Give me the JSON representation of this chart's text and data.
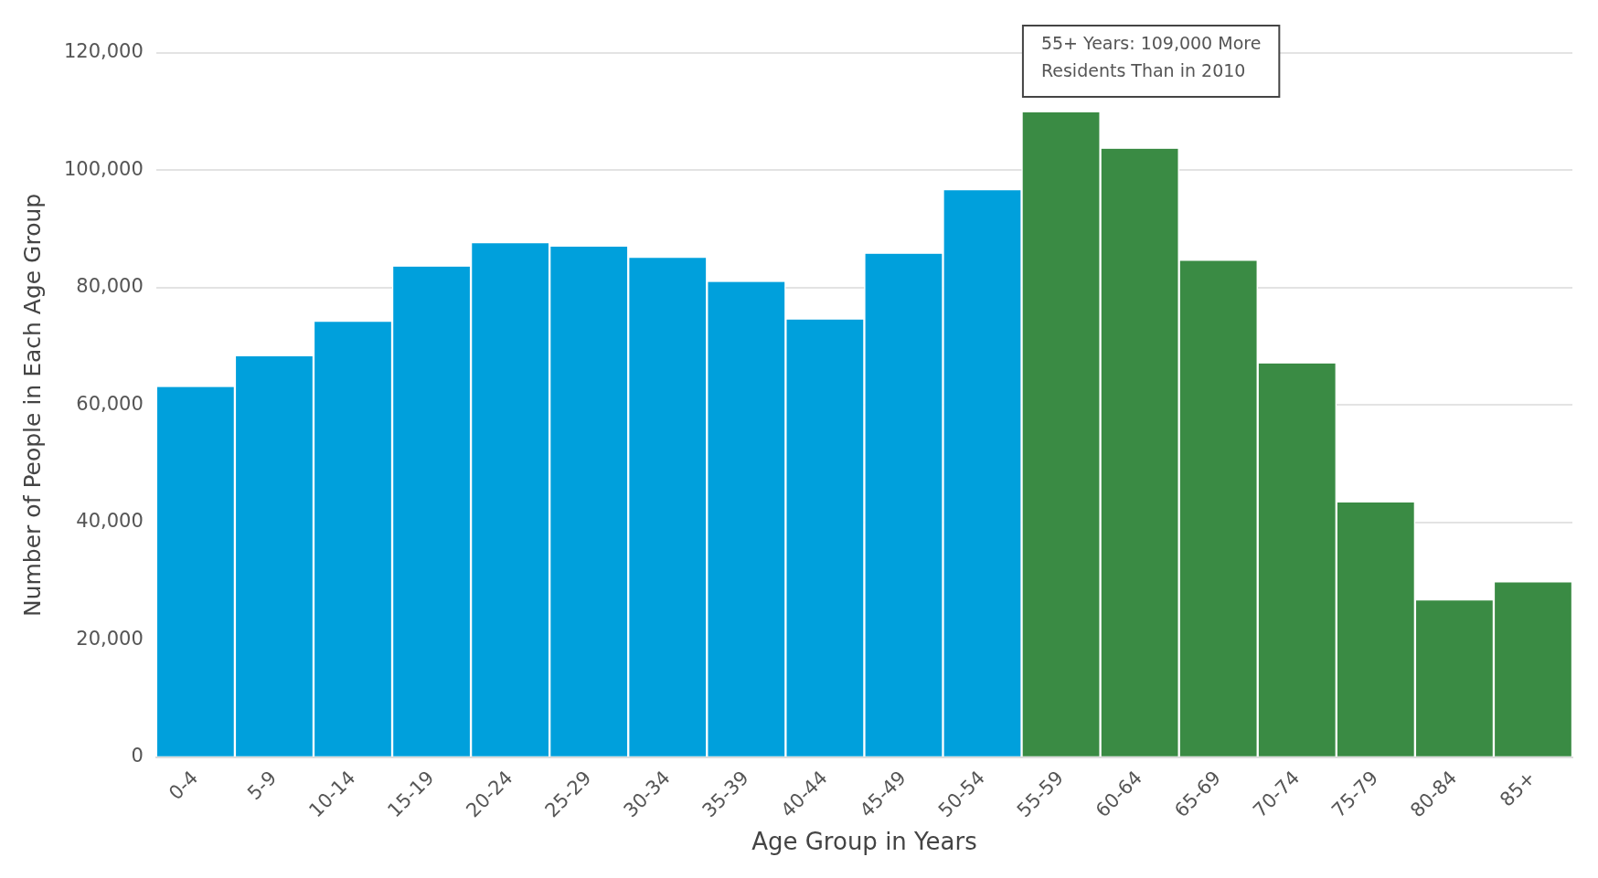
{
  "chart_data": {
    "type": "bar",
    "xlabel": "Age Group in Years",
    "ylabel": "Number of People in Each Age Group",
    "categories": [
      "0-4",
      "5-9",
      "10-14",
      "15-19",
      "20-24",
      "25-29",
      "30-34",
      "35-39",
      "40-44",
      "45-49",
      "50-54",
      "55-59",
      "60-64",
      "65-69",
      "70-74",
      "75-79",
      "80-84",
      "85+"
    ],
    "values": [
      63100,
      68300,
      74200,
      83600,
      87600,
      87000,
      85100,
      81000,
      74600,
      85800,
      96600,
      109900,
      103700,
      84600,
      67100,
      43400,
      26700,
      29800
    ],
    "colors": [
      "#00a0dc",
      "#00a0dc",
      "#00a0dc",
      "#00a0dc",
      "#00a0dc",
      "#00a0dc",
      "#00a0dc",
      "#00a0dc",
      "#00a0dc",
      "#00a0dc",
      "#00a0dc",
      "#3a8b44",
      "#3a8b44",
      "#3a8b44",
      "#3a8b44",
      "#3a8b44",
      "#3a8b44",
      "#3a8b44"
    ],
    "ylim": [
      0,
      120000
    ],
    "yticks": [
      0,
      {
        "value": 20000,
        "label": "20,000"
      },
      {
        "value": 40000,
        "label": "40,000"
      },
      {
        "value": 60000,
        "label": "60,000"
      },
      {
        "value": 80000,
        "label": "80,000"
      },
      {
        "value": 100000,
        "label": "100,000"
      },
      {
        "value": 120000,
        "label": "120,000"
      }
    ],
    "grid": "y",
    "annotations": [
      "55+ Years: 109,000 More Residents Than in 2010"
    ]
  }
}
